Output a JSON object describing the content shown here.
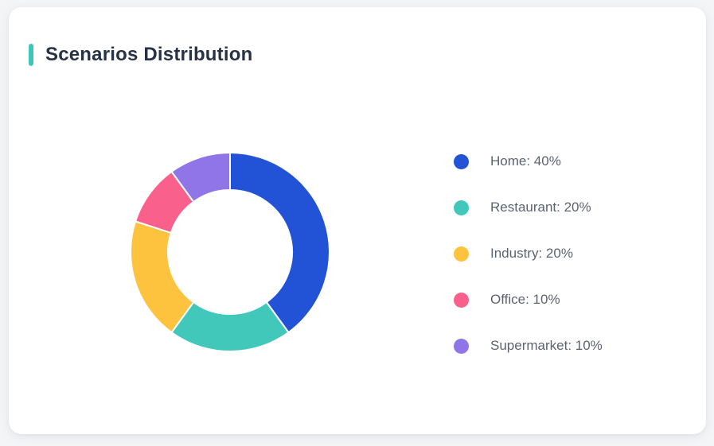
{
  "card": {
    "title": "Scenarios Distribution",
    "accent_color": "#3EC6BA",
    "background": "#FFFFFF",
    "page_background": "#F3F5F7",
    "title_color": "#273247"
  },
  "chart_data": {
    "type": "pie",
    "subtype": "donut",
    "title": "Scenarios Distribution",
    "start_angle_deg": 0,
    "direction": "clockwise",
    "inner_radius_ratio": 0.62,
    "legend_position": "right",
    "segment_border_color": "#FFFFFF",
    "segments": [
      {
        "name": "Home",
        "value": 40,
        "unit": "%",
        "color": "#2253D6",
        "label": "Home: 40%"
      },
      {
        "name": "Restaurant",
        "value": 20,
        "unit": "%",
        "color": "#41C8BB",
        "label": "Restaurant: 20%"
      },
      {
        "name": "Industry",
        "value": 20,
        "unit": "%",
        "color": "#FDC33F",
        "label": "Industry: 20%"
      },
      {
        "name": "Office",
        "value": 10,
        "unit": "%",
        "color": "#F9618C",
        "label": "Office: 10%"
      },
      {
        "name": "Supermarket",
        "value": 10,
        "unit": "%",
        "color": "#8F75E8",
        "label": "Supermarket: 10%"
      }
    ]
  }
}
